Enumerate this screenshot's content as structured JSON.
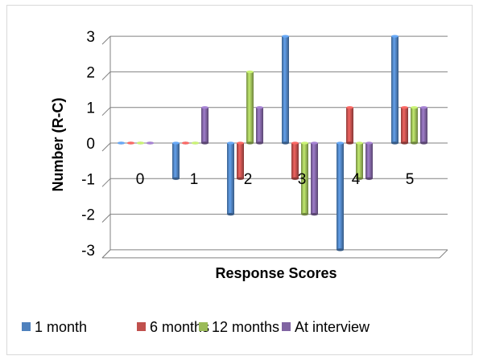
{
  "chart_data": {
    "type": "bar",
    "style": "3d-cylinder",
    "categories": [
      "0",
      "1",
      "2",
      "3",
      "4",
      "5"
    ],
    "series": [
      {
        "name": "1 month",
        "color": "#4F81BD",
        "values": [
          0,
          -1,
          -2,
          3,
          -3,
          3
        ]
      },
      {
        "name": "6 months",
        "color": "#C0504D",
        "values": [
          0,
          0,
          -1,
          -1,
          1,
          1
        ]
      },
      {
        "name": "12 months",
        "color": "#9BBB59",
        "values": [
          0,
          0,
          2,
          -2,
          -1,
          1
        ]
      },
      {
        "name": "At interview",
        "color": "#8064A2",
        "values": [
          0,
          1,
          1,
          -2,
          -1,
          1
        ]
      }
    ],
    "title": "",
    "xlabel": "Response Scores",
    "ylabel": "Number (R-C)",
    "ylim": [
      -3,
      3
    ],
    "yticks": [
      "-3",
      "-2",
      "-1",
      "0",
      "1",
      "2",
      "3"
    ],
    "grid": true,
    "legend": "bottom"
  }
}
